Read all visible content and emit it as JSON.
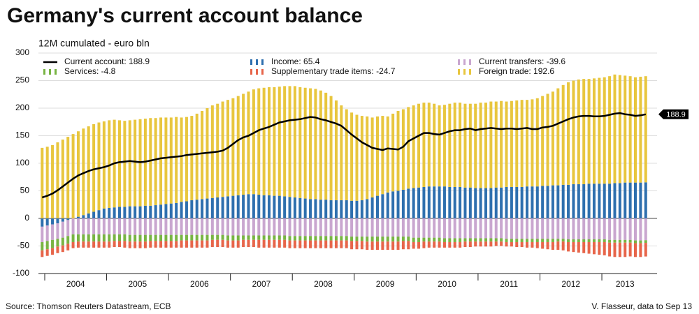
{
  "chart_data": {
    "type": "bar",
    "title": "Germany's current account balance",
    "subtitle": "12M cumulated - euro bln",
    "source": "Source: Thomson Reuters Datastream, ECB",
    "credit": "V. Flasseur, data to Sep 13",
    "x_labels": [
      "2004",
      "2005",
      "2006",
      "2007",
      "2008",
      "2009",
      "2010",
      "2011",
      "2012",
      "2013"
    ],
    "ylim": [
      -100,
      300
    ],
    "yticks": [
      -100,
      -50,
      0,
      50,
      100,
      150,
      200,
      250,
      300
    ],
    "grid": true,
    "legend": "top",
    "series": [
      {
        "name": "Current account: 188.9",
        "type": "line",
        "color": "#000000",
        "values": [
          38,
          41,
          45,
          51,
          58,
          65,
          72,
          78,
          82,
          86,
          89,
          91,
          93,
          96,
          100,
          102,
          103,
          104,
          103,
          102,
          103,
          105,
          107,
          109,
          110,
          111,
          112,
          113,
          115,
          116,
          117,
          118,
          119,
          120,
          121,
          123,
          128,
          135,
          142,
          147,
          150,
          155,
          160,
          163,
          166,
          170,
          174,
          176,
          178,
          179,
          180,
          182,
          184,
          183,
          180,
          178,
          175,
          172,
          168,
          160,
          152,
          145,
          138,
          133,
          128,
          126,
          124,
          127,
          126,
          125,
          130,
          140,
          145,
          150,
          155,
          155,
          153,
          152,
          155,
          158,
          160,
          160,
          162,
          163,
          160,
          162,
          163,
          164,
          163,
          162,
          163,
          163,
          162,
          163,
          164,
          162,
          162,
          165,
          166,
          168,
          172,
          176,
          180,
          183,
          185,
          186,
          186,
          185,
          185,
          186,
          188,
          190,
          191,
          189,
          188,
          186,
          187,
          188.9
        ]
      },
      {
        "name": "Income: 65.4",
        "type": "bar",
        "color": "#2e6fae",
        "values": [
          -15,
          -13,
          -11,
          -9,
          -6,
          -3,
          0,
          3,
          6,
          9,
          12,
          15,
          18,
          19,
          20,
          21,
          21,
          22,
          22,
          22,
          23,
          23,
          24,
          25,
          26,
          27,
          28,
          30,
          31,
          33,
          34,
          35,
          36,
          37,
          38,
          39,
          40,
          41,
          42,
          43,
          44,
          44,
          43,
          42,
          42,
          41,
          41,
          40,
          39,
          38,
          37,
          36,
          35,
          35,
          34,
          34,
          33,
          33,
          33,
          33,
          32,
          32,
          33,
          35,
          38,
          41,
          44,
          47,
          49,
          50,
          52,
          54,
          55,
          56,
          57,
          58,
          58,
          58,
          58,
          57,
          57,
          57,
          56,
          56,
          55,
          55,
          55,
          55,
          56,
          56,
          57,
          57,
          57,
          57,
          58,
          58,
          58,
          59,
          59,
          60,
          60,
          61,
          61,
          62,
          62,
          62,
          63,
          63,
          63,
          63,
          63,
          64,
          64,
          65,
          65,
          65,
          65,
          65.4
        ]
      },
      {
        "name": "Current transfers: -39.6",
        "type": "bar",
        "color": "#c9a6cf",
        "values": [
          -28,
          -28,
          -28,
          -28,
          -29,
          -29,
          -29,
          -29,
          -29,
          -29,
          -29,
          -29,
          -29,
          -29,
          -29,
          -29,
          -29,
          -30,
          -30,
          -30,
          -30,
          -30,
          -30,
          -30,
          -30,
          -30,
          -30,
          -30,
          -30,
          -30,
          -30,
          -30,
          -30,
          -30,
          -30,
          -30,
          -31,
          -31,
          -31,
          -31,
          -31,
          -31,
          -31,
          -31,
          -31,
          -31,
          -31,
          -31,
          -32,
          -32,
          -32,
          -32,
          -32,
          -32,
          -32,
          -32,
          -32,
          -32,
          -32,
          -32,
          -33,
          -33,
          -33,
          -33,
          -33,
          -33,
          -33,
          -33,
          -33,
          -33,
          -33,
          -33,
          -35,
          -35,
          -35,
          -35,
          -35,
          -35,
          -36,
          -36,
          -36,
          -36,
          -36,
          -36,
          -36,
          -36,
          -36,
          -36,
          -36,
          -36,
          -37,
          -37,
          -37,
          -37,
          -37,
          -37,
          -37,
          -37,
          -37,
          -37,
          -37,
          -37,
          -38,
          -38,
          -38,
          -38,
          -38,
          -38,
          -38,
          -38,
          -39,
          -39,
          -39,
          -39,
          -39,
          -40,
          -40,
          -39.6
        ]
      },
      {
        "name": "Services: -4.8",
        "type": "bar",
        "color": "#78b443",
        "values": [
          -15,
          -15,
          -15,
          -14,
          -14,
          -14,
          -14,
          -13,
          -13,
          -13,
          -13,
          -13,
          -13,
          -13,
          -12,
          -12,
          -12,
          -12,
          -12,
          -12,
          -12,
          -11,
          -11,
          -11,
          -11,
          -11,
          -11,
          -10,
          -10,
          -10,
          -10,
          -10,
          -10,
          -9,
          -9,
          -9,
          -9,
          -9,
          -9,
          -8,
          -8,
          -8,
          -8,
          -8,
          -8,
          -8,
          -8,
          -8,
          -8,
          -8,
          -8,
          -8,
          -8,
          -8,
          -8,
          -8,
          -8,
          -8,
          -8,
          -8,
          -8,
          -8,
          -8,
          -9,
          -9,
          -9,
          -9,
          -9,
          -9,
          -9,
          -8,
          -8,
          -8,
          -8,
          -7,
          -7,
          -7,
          -7,
          -7,
          -7,
          -7,
          -7,
          -6,
          -6,
          -6,
          -6,
          -6,
          -6,
          -6,
          -6,
          -6,
          -6,
          -6,
          -6,
          -6,
          -6,
          -6,
          -6,
          -6,
          -6,
          -5,
          -5,
          -5,
          -5,
          -5,
          -5,
          -5,
          -5,
          -5,
          -5,
          -5,
          -5,
          -5,
          -5,
          -5,
          -5,
          -5,
          -4.8
        ]
      },
      {
        "name": "Supplementary trade items: -24.7",
        "type": "bar",
        "color": "#e7654a",
        "values": [
          -12,
          -12,
          -12,
          -12,
          -12,
          -12,
          -11,
          -11,
          -11,
          -11,
          -11,
          -11,
          -11,
          -11,
          -11,
          -11,
          -12,
          -12,
          -12,
          -12,
          -12,
          -12,
          -12,
          -12,
          -12,
          -12,
          -12,
          -13,
          -13,
          -13,
          -13,
          -13,
          -13,
          -13,
          -13,
          -13,
          -13,
          -13,
          -13,
          -13,
          -13,
          -13,
          -14,
          -14,
          -14,
          -14,
          -14,
          -14,
          -14,
          -14,
          -14,
          -14,
          -14,
          -14,
          -14,
          -14,
          -14,
          -14,
          -14,
          -14,
          -15,
          -15,
          -15,
          -15,
          -15,
          -15,
          -15,
          -15,
          -15,
          -15,
          -15,
          -15,
          -12,
          -12,
          -12,
          -11,
          -11,
          -11,
          -10,
          -10,
          -10,
          -10,
          -10,
          -10,
          -9,
          -9,
          -9,
          -9,
          -8,
          -8,
          -8,
          -8,
          -9,
          -9,
          -10,
          -10,
          -11,
          -12,
          -13,
          -14,
          -15,
          -16,
          -17,
          -18,
          -19,
          -20,
          -21,
          -22,
          -23,
          -24,
          -25,
          -26,
          -26,
          -26,
          -25,
          -25,
          -25,
          -24.7
        ]
      },
      {
        "name": "Foreign trade: 192.6",
        "type": "bar",
        "color": "#e8c63e",
        "values": [
          128,
          130,
          133,
          138,
          143,
          148,
          153,
          155,
          157,
          158,
          159,
          159,
          158,
          159,
          159,
          157,
          156,
          156,
          157,
          158,
          158,
          159,
          158,
          158,
          157,
          156,
          156,
          153,
          153,
          153,
          156,
          160,
          164,
          168,
          170,
          173,
          175,
          177,
          180,
          183,
          186,
          190,
          193,
          195,
          196,
          197,
          198,
          200,
          201,
          202,
          201,
          201,
          201,
          200,
          198,
          194,
          189,
          181,
          172,
          165,
          160,
          156,
          153,
          150,
          145,
          144,
          142,
          138,
          141,
          145,
          146,
          148,
          150,
          152,
          153,
          152,
          150,
          147,
          148,
          151,
          153,
          153,
          152,
          152,
          153,
          155,
          155,
          157,
          156,
          157,
          155,
          156,
          157,
          158,
          157,
          158,
          160,
          163,
          167,
          170,
          176,
          181,
          186,
          188,
          190,
          191,
          190,
          191,
          192,
          193,
          195,
          197,
          196,
          194,
          193,
          191,
          192,
          192.6
        ]
      }
    ]
  }
}
